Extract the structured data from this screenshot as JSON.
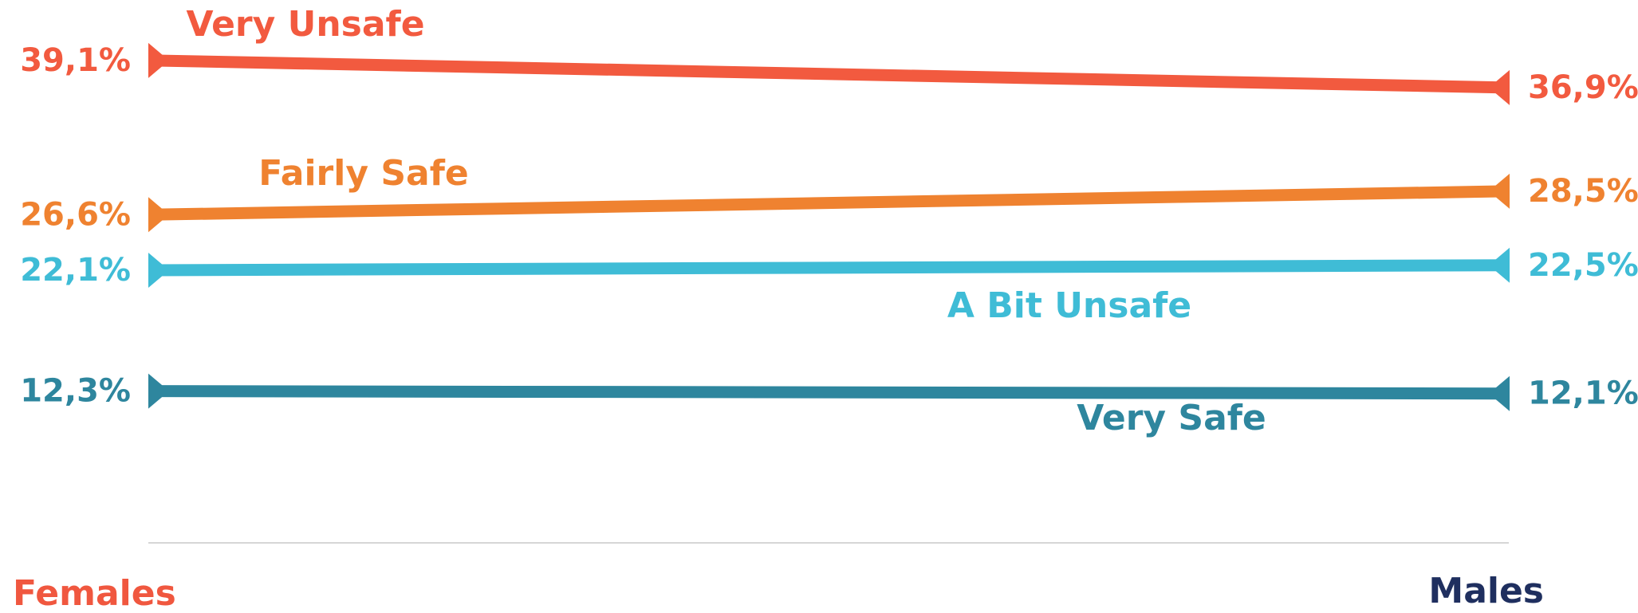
{
  "chart_data": {
    "type": "slope",
    "categories": [
      "Females",
      "Males"
    ],
    "category_colors": [
      "#f0573f",
      "#1f2f5f"
    ],
    "ylim": [
      0,
      44
    ],
    "series": [
      {
        "name": "Very Unsafe",
        "color": "#f25a3f",
        "values": [
          39.1,
          36.9
        ],
        "value_labels": [
          "39,1%",
          "36,9%"
        ]
      },
      {
        "name": "Fairly Safe",
        "color": "#ef8230",
        "values": [
          26.6,
          28.5
        ],
        "value_labels": [
          "26,6%",
          "28,5%"
        ]
      },
      {
        "name": "A Bit Unsafe",
        "color": "#3fbcd6",
        "values": [
          22.1,
          22.5
        ],
        "value_labels": [
          "22,1%",
          "22,5%"
        ]
      },
      {
        "name": "Very Safe",
        "color": "#2e869e",
        "values": [
          12.3,
          12.1
        ],
        "value_labels": [
          "12,3%",
          "12,1%"
        ]
      }
    ]
  }
}
